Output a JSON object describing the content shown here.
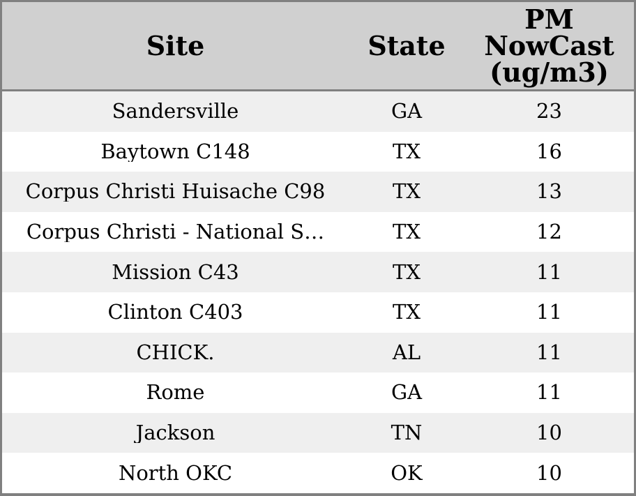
{
  "chart_data": {
    "type": "table",
    "columns": [
      "Site",
      "State",
      "PM NowCast (ug/m3)"
    ],
    "rows": [
      [
        "Sandersville",
        "GA",
        23
      ],
      [
        "Baytown C148",
        "TX",
        16
      ],
      [
        "Corpus Christi Huisache C98",
        "TX",
        13
      ],
      [
        "Corpus Christi - National S…",
        "TX",
        12
      ],
      [
        "Mission C43",
        "TX",
        11
      ],
      [
        "Clinton C403",
        "TX",
        11
      ],
      [
        "CHICK.",
        "AL",
        11
      ],
      [
        "Rome",
        "GA",
        11
      ],
      [
        "Jackson",
        "TN",
        10
      ],
      [
        "North OKC",
        "OK",
        10
      ]
    ]
  },
  "table": {
    "header": {
      "site": "Site",
      "state": "State",
      "pm": "PM\nNowCast\n(ug/m3)"
    },
    "rows": [
      {
        "site": "Sandersville",
        "state": "GA",
        "pm": "23"
      },
      {
        "site": "Baytown C148",
        "state": "TX",
        "pm": "16"
      },
      {
        "site": "Corpus Christi Huisache C98",
        "state": "TX",
        "pm": "13"
      },
      {
        "site": "Corpus Christi - National S…",
        "state": "TX",
        "pm": "12"
      },
      {
        "site": "Mission C43",
        "state": "TX",
        "pm": "11"
      },
      {
        "site": "Clinton C403",
        "state": "TX",
        "pm": "11"
      },
      {
        "site": "CHICK.",
        "state": "AL",
        "pm": "11"
      },
      {
        "site": "Rome",
        "state": "GA",
        "pm": "11"
      },
      {
        "site": "Jackson",
        "state": "TN",
        "pm": "10"
      },
      {
        "site": "North OKC",
        "state": "OK",
        "pm": "10"
      }
    ]
  },
  "colors": {
    "header_bg": "#d0d0d0",
    "stripe_bg": "#efefef",
    "row_bg": "#ffffff",
    "border": "#808080",
    "text": "#000000"
  }
}
